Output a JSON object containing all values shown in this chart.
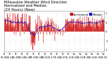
{
  "title_line1": "Milwaukee Weather Wind Direction",
  "title_line2": "Normalized and Median",
  "title_line3": "(24 Hours) (New)",
  "bg_color": "#ffffff",
  "plot_bg_color": "#ffffff",
  "bar_color": "#cc0000",
  "median_color": "#0000cc",
  "legend_labels": [
    "Normalized",
    "Median"
  ],
  "legend_colors": [
    "#cc0000",
    "#0000cc"
  ],
  "ylim": [
    -1.1,
    1.1
  ],
  "ytick_values": [
    1.0,
    0.5,
    0.0,
    -0.5,
    -1.0
  ],
  "ytick_labels": [
    "1",
    ".5",
    "0",
    "-.5",
    "-1"
  ],
  "n_points": 288,
  "grid_color": "#bbbbbb",
  "title_fontsize": 3.8,
  "tick_fontsize": 2.5,
  "legend_fontsize": 3.0,
  "n_xticks": 18
}
